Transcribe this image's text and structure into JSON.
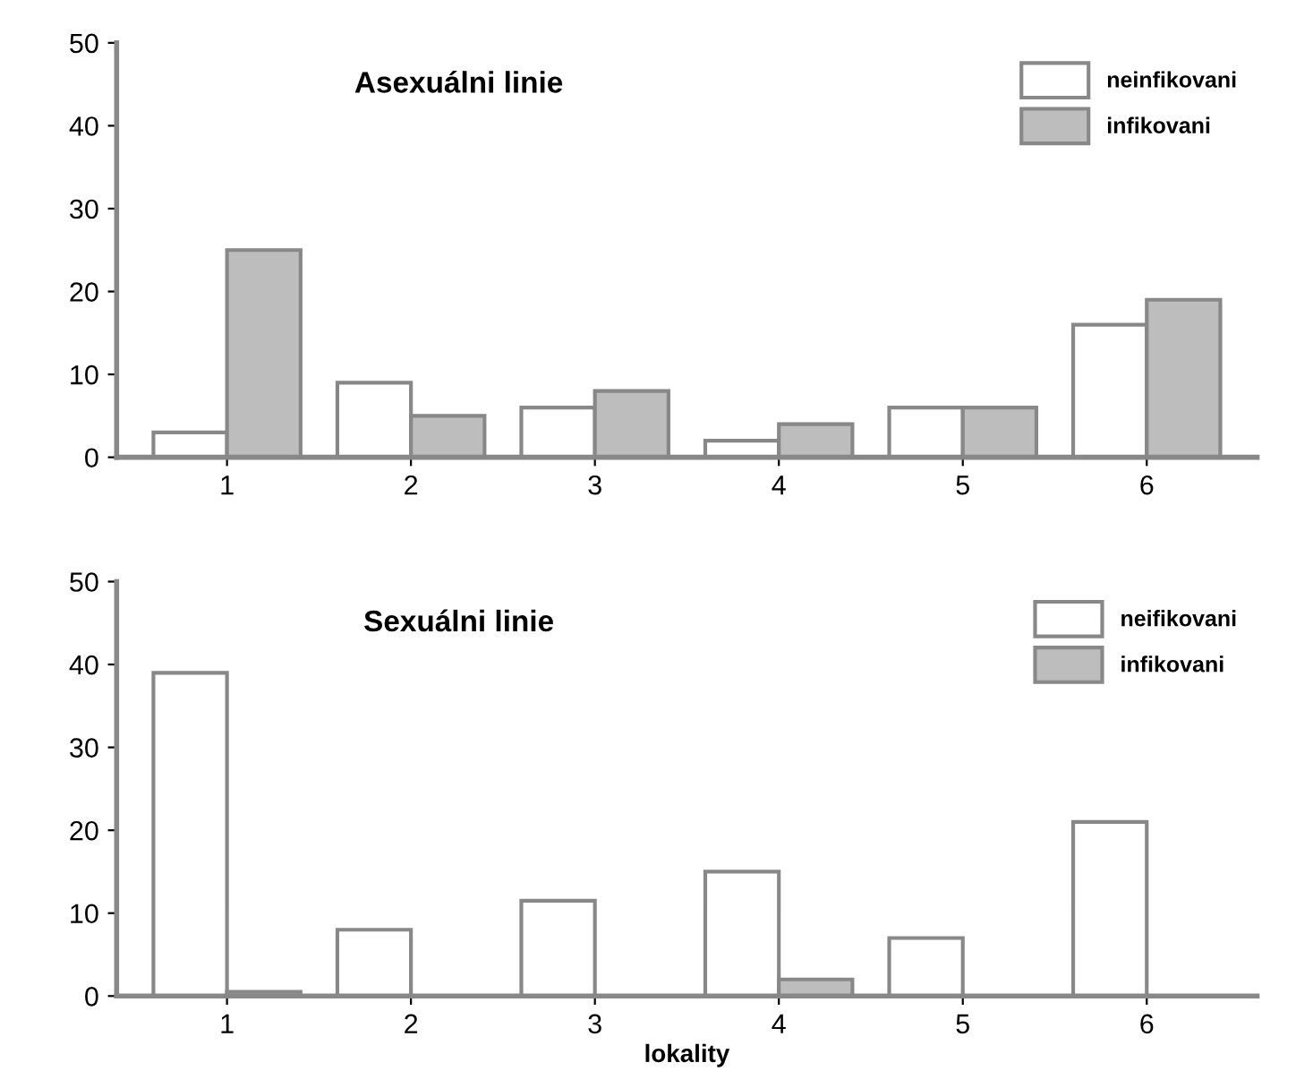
{
  "chart_data": [
    {
      "type": "bar",
      "title": "Asexuálni linie",
      "categories": [
        "1",
        "2",
        "3",
        "4",
        "5",
        "6"
      ],
      "ylim": [
        0,
        50
      ],
      "yticks": [
        0,
        10,
        20,
        30,
        40,
        50
      ],
      "grid": false,
      "legend": "top right",
      "series": [
        {
          "name": "neinfikovani",
          "color": "#ffffff",
          "values": [
            3,
            9,
            6,
            2,
            6,
            16
          ]
        },
        {
          "name": "infikovani",
          "color": "#bdbdbd",
          "values": [
            25,
            5,
            8,
            4,
            6,
            19
          ]
        }
      ]
    },
    {
      "type": "bar",
      "title": "Sexuálni linie",
      "xlabel": "lokality",
      "categories": [
        "1",
        "2",
        "3",
        "4",
        "5",
        "6"
      ],
      "ylim": [
        0,
        50
      ],
      "yticks": [
        0,
        10,
        20,
        30,
        40,
        50
      ],
      "grid": false,
      "legend": "top right",
      "series": [
        {
          "name": "neifikovani",
          "color": "#ffffff",
          "values": [
            39,
            8,
            11.5,
            15,
            7,
            21
          ]
        },
        {
          "name": "infikovani",
          "color": "#bdbdbd",
          "values": [
            0.5,
            0,
            0,
            2,
            0,
            0
          ]
        }
      ]
    }
  ]
}
